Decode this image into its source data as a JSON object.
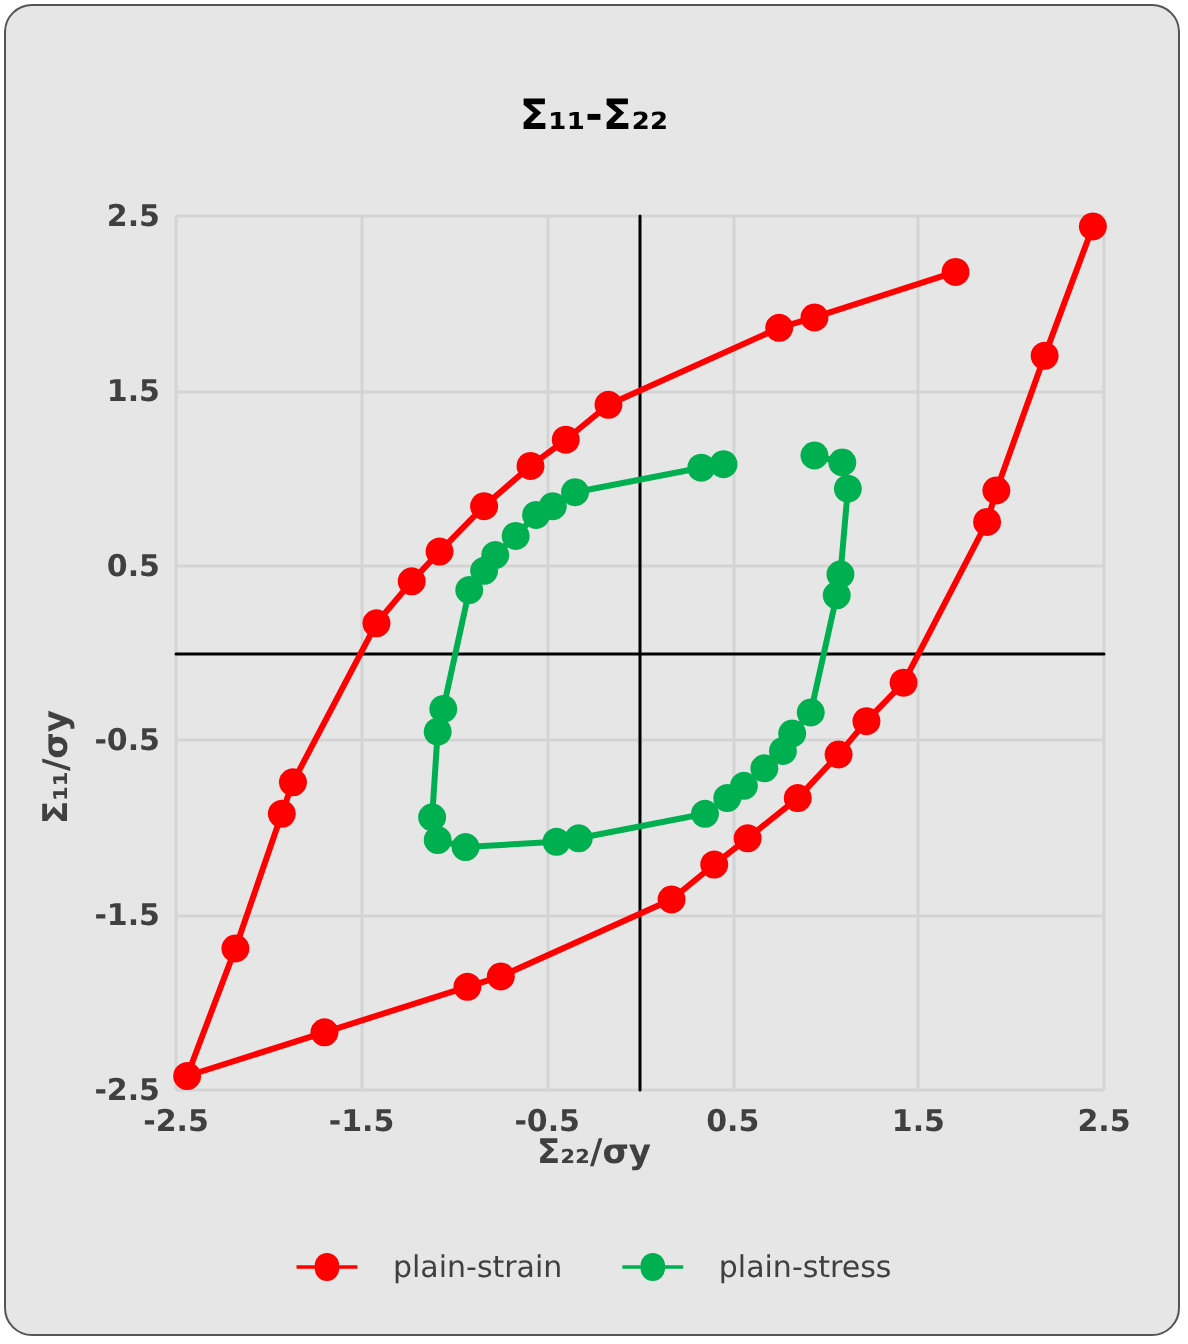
{
  "chart_data": {
    "type": "line",
    "title": "Σ₁₁-Σ₂₂",
    "xlabel": "Σ₂₂/σy",
    "ylabel": "Σ₁₁/σy",
    "xlim": [
      -2.5,
      2.5
    ],
    "xticks": [
      -2.5,
      -1.5,
      -0.5,
      0.5,
      1.5,
      2.5
    ],
    "ylim": [
      -2.5,
      2.5
    ],
    "yticks": [
      -2.5,
      -1.5,
      -0.5,
      0.5,
      1.5,
      2.5
    ],
    "grid": true,
    "legend": "bottom",
    "marker": "circle",
    "line_style": "solid",
    "series": [
      {
        "name": "plain-strain",
        "color": "#ff0000",
        "x": [
          2.44,
          2.18,
          1.92,
          1.87,
          1.42,
          1.22,
          1.07,
          0.85,
          0.58,
          0.4,
          0.17,
          -0.75,
          -0.93,
          -1.7,
          -2.44,
          -2.18,
          -1.93,
          -1.87,
          -1.42,
          -1.23,
          -1.08,
          -0.84,
          -0.59,
          -0.4,
          -0.17,
          0.75,
          0.94,
          1.7
        ],
        "values": [
          2.44,
          1.7,
          0.93,
          0.75,
          -0.17,
          -0.39,
          -0.58,
          -0.83,
          -1.06,
          -1.21,
          -1.41,
          -1.85,
          -1.91,
          -2.17,
          -2.42,
          -1.69,
          -0.92,
          -0.74,
          0.17,
          0.41,
          0.58,
          0.84,
          1.07,
          1.22,
          1.42,
          1.86,
          1.92,
          2.18
        ]
      },
      {
        "name": "plain-stress",
        "color": "#00b050",
        "x": [
          0.94,
          1.09,
          1.12,
          1.08,
          1.06,
          0.92,
          0.82,
          0.77,
          0.67,
          0.56,
          0.47,
          0.35,
          -0.33,
          -0.45,
          -0.94,
          -1.09,
          -1.12,
          -1.09,
          -1.06,
          -0.92,
          -0.84,
          -0.78,
          -0.67,
          -0.56,
          -0.47,
          -0.35,
          0.33,
          0.45
        ],
        "values": [
          1.13,
          1.09,
          0.94,
          0.45,
          0.33,
          -0.34,
          -0.46,
          -0.56,
          -0.66,
          -0.76,
          -0.83,
          -0.92,
          -1.06,
          -1.08,
          -1.11,
          -1.07,
          -0.94,
          -0.45,
          -0.32,
          0.36,
          0.47,
          0.56,
          0.67,
          0.79,
          0.84,
          0.92,
          1.06,
          1.08
        ]
      }
    ]
  }
}
